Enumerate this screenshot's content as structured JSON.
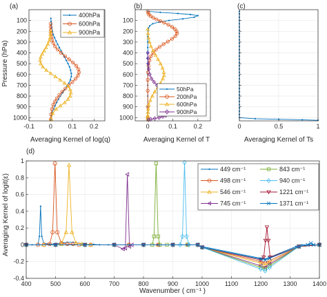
{
  "colors": [
    "#0072BD",
    "#D95319",
    "#EDB120",
    "#7E2F8E",
    "#77AC30",
    "#4DBEEE",
    "#A2142F",
    "#0072BD"
  ],
  "chart_data": [
    {
      "type": "line",
      "panel": "(a)",
      "xlabel": "Averaging Kernel of log(q)",
      "ylabel": "Pressure (hPa)",
      "xlim": [
        -0.1,
        0.25
      ],
      "ylim": [
        1030,
        0
      ],
      "y_reversed": true,
      "xticks": [
        -0.1,
        0,
        0.1,
        0.2
      ],
      "xtick_labels": [
        "-0.1",
        "0",
        "0.1",
        "0.2"
      ],
      "yticks": [
        100,
        200,
        300,
        400,
        500,
        600,
        700,
        800,
        900,
        1000
      ],
      "legend": "top-right",
      "series": [
        {
          "name": "400hPa",
          "marker": "dot",
          "color": "#0072BD",
          "x": [
            0.001,
            0.002,
            0.003,
            0.005,
            0.008,
            0.012,
            0.018,
            0.025,
            0.032,
            0.04,
            0.048,
            0.056,
            0.064,
            0.072,
            0.08,
            0.087,
            0.092,
            0.095,
            0.095,
            0.091,
            0.084,
            0.075,
            0.065,
            0.055,
            0.045,
            0.036,
            0.028,
            0.02,
            0.014,
            0.008,
            0.004,
            0.002,
            0.001
          ],
          "y": [
            80,
            110,
            140,
            170,
            200,
            230,
            260,
            290,
            320,
            350,
            380,
            410,
            440,
            470,
            500,
            530,
            560,
            590,
            620,
            650,
            680,
            710,
            740,
            770,
            800,
            830,
            860,
            890,
            920,
            950,
            980,
            1000,
            1015
          ]
        },
        {
          "name": "600hPa",
          "marker": "circle",
          "color": "#D95319",
          "x": [
            0,
            0,
            0.001,
            0.002,
            0.004,
            0.007,
            0.012,
            0.02,
            0.032,
            0.048,
            0.066,
            0.085,
            0.103,
            0.118,
            0.128,
            0.131,
            0.126,
            0.115,
            0.1,
            0.084,
            0.068,
            0.053,
            0.04,
            0.029,
            0.02,
            0.012,
            0.006,
            0.002,
            0
          ],
          "y": [
            130,
            160,
            190,
            220,
            250,
            280,
            310,
            340,
            370,
            400,
            430,
            460,
            490,
            520,
            550,
            580,
            610,
            640,
            670,
            700,
            730,
            760,
            790,
            820,
            850,
            880,
            920,
            970,
            1015
          ]
        },
        {
          "name": "900hPa",
          "marker": "triangle",
          "color": "#EDB120",
          "x": [
            0,
            -0.001,
            -0.003,
            -0.007,
            -0.013,
            -0.021,
            -0.03,
            -0.039,
            -0.046,
            -0.049,
            -0.046,
            -0.036,
            -0.02,
            0,
            0.022,
            0.044,
            0.064,
            0.08,
            0.09,
            0.093,
            0.09,
            0.08,
            0.065,
            0.045,
            0.025,
            0.01,
            0.002
          ],
          "y": [
            200,
            230,
            260,
            290,
            320,
            350,
            380,
            410,
            440,
            470,
            500,
            530,
            560,
            590,
            620,
            650,
            680,
            710,
            740,
            770,
            800,
            830,
            860,
            890,
            920,
            960,
            1015
          ]
        }
      ]
    },
    {
      "type": "line",
      "panel": "(b)",
      "xlabel": "Averaging Kernel of T",
      "ylabel": "",
      "xlim": [
        -0.05,
        0.25
      ],
      "ylim": [
        1030,
        0
      ],
      "y_reversed": true,
      "xticks": [
        0,
        0.1,
        0.2
      ],
      "xtick_labels": [
        "0",
        "0.1",
        "0.2"
      ],
      "yticks": [
        100,
        200,
        300,
        400,
        500,
        600,
        700,
        800,
        900,
        1000
      ],
      "legend": "bottom-right",
      "series": [
        {
          "name": "50hPa",
          "marker": "dot",
          "color": "#0072BD",
          "x": [
            0,
            0.05,
            0.12,
            0.17,
            0.2,
            0.185,
            0.14,
            0.085,
            0.045,
            0.02,
            0.008,
            0.003,
            0.001,
            0,
            0,
            0,
            0,
            0,
            0,
            0,
            0,
            0,
            0,
            0,
            0,
            0
          ],
          "y": [
            15,
            25,
            35,
            45,
            55,
            70,
            85,
            100,
            115,
            130,
            150,
            170,
            200,
            250,
            300,
            350,
            400,
            450,
            500,
            550,
            600,
            700,
            800,
            900,
            950,
            1000
          ]
        },
        {
          "name": "200hPa",
          "marker": "circle",
          "color": "#D95319",
          "x": [
            0,
            0.002,
            0.005,
            0.012,
            0.022,
            0.035,
            0.05,
            0.065,
            0.082,
            0.097,
            0.108,
            0.115,
            0.117,
            0.11,
            0.097,
            0.08,
            0.063,
            0.047,
            0.033,
            0.022,
            0.013,
            0.007,
            0.003,
            0.001,
            0,
            0,
            0,
            0
          ],
          "y": [
            15,
            30,
            45,
            60,
            75,
            90,
            105,
            120,
            140,
            160,
            180,
            200,
            220,
            245,
            270,
            295,
            320,
            345,
            370,
            400,
            430,
            470,
            520,
            580,
            650,
            750,
            900,
            1000
          ]
        },
        {
          "name": "600hPa",
          "marker": "triangle",
          "color": "#EDB120",
          "x": [
            0,
            0.001,
            0.003,
            0.007,
            0.013,
            0.021,
            0.031,
            0.041,
            0.051,
            0.059,
            0.064,
            0.065,
            0.06,
            0.051,
            0.04,
            0.028,
            0.018,
            0.01,
            0.004,
            0.002,
            0.001,
            0,
            0,
            0
          ],
          "y": [
            180,
            220,
            260,
            300,
            340,
            380,
            420,
            460,
            500,
            540,
            580,
            610,
            640,
            680,
            720,
            760,
            800,
            840,
            880,
            920,
            950,
            980,
            1000,
            1015
          ]
        },
        {
          "name": "900hPa",
          "marker": "diamond",
          "color": "#7E2F8E",
          "x": [
            0,
            0.001,
            0.002,
            0.004,
            0.008,
            0.015,
            0.025,
            0.037,
            0.05,
            0.062,
            0.071,
            0.077,
            0.08,
            0.082,
            0.084,
            0.085,
            0.084,
            0.08,
            0.072,
            0.06,
            0.045,
            0.028,
            0.012,
            0.003
          ],
          "y": [
            400,
            450,
            500,
            550,
            600,
            640,
            670,
            700,
            730,
            760,
            790,
            820,
            850,
            880,
            910,
            930,
            950,
            965,
            980,
            990,
            1000,
            1008,
            1015,
            1020
          ]
        }
      ]
    },
    {
      "type": "line",
      "panel": "(c)",
      "xlabel": "Averaging Kernel of Ts",
      "ylabel": "",
      "xlim": [
        0,
        1
      ],
      "ylim": [
        1030,
        0
      ],
      "y_reversed": true,
      "xticks": [
        0,
        0.5,
        1
      ],
      "xtick_labels": [
        "0",
        "0.5",
        "1"
      ],
      "yticks": [
        100,
        200,
        300,
        400,
        500,
        600,
        700,
        800,
        900,
        1000
      ],
      "series": [
        {
          "name": "",
          "marker": "dot",
          "color": "#0072BD",
          "x": [
            0,
            0,
            0,
            0,
            0,
            0,
            0,
            0,
            0,
            0,
            0,
            0,
            0,
            0,
            0,
            0,
            0,
            0,
            0,
            0,
            0,
            0,
            0,
            0,
            0,
            0,
            0,
            0,
            0,
            0,
            0,
            0,
            0,
            0,
            0.2,
            0.5,
            0.8,
            1.0
          ],
          "y": [
            15,
            40,
            70,
            100,
            130,
            160,
            190,
            220,
            250,
            280,
            310,
            340,
            370,
            400,
            430,
            460,
            490,
            520,
            550,
            580,
            610,
            640,
            670,
            700,
            730,
            760,
            790,
            820,
            850,
            880,
            910,
            940,
            970,
            1000,
            1010,
            1015,
            1020,
            1025
          ]
        }
      ]
    },
    {
      "type": "line",
      "panel": "(d)",
      "xlabel": "Wavenumber ( cm⁻¹ )",
      "ylabel": "Averaging Kernel of logit(ε)",
      "xlim": [
        400,
        1400
      ],
      "ylim": [
        -0.4,
        1
      ],
      "xticks": [
        400,
        500,
        600,
        700,
        800,
        900,
        1000,
        1100,
        1200,
        1300,
        1400
      ],
      "yticks": [
        -0.4,
        -0.2,
        0,
        0.2,
        0.4,
        0.6,
        0.8,
        1
      ],
      "ytick_labels": [
        "-0.4",
        "-0.2",
        "0",
        "0.2",
        "0.4",
        "0.6",
        "0.8",
        "1"
      ],
      "legend": "top-right",
      "series": [
        {
          "name": "449 cm⁻¹",
          "marker": "dot",
          "color": "#0072BD",
          "x": [
            400,
            420,
            440,
            445,
            449,
            453,
            460,
            480,
            500,
            520,
            540,
            560,
            620,
            630,
            650,
            680,
            700,
            750,
            800,
            850,
            900,
            950,
            980,
            1000,
            1200,
            1215,
            1230,
            1320,
            1340,
            1380,
            1400
          ],
          "y": [
            0,
            0,
            0,
            0.1,
            0.46,
            0.1,
            0.02,
            0.01,
            0.01,
            0.02,
            0.03,
            0.03,
            0,
            0.005,
            0,
            0,
            0,
            0,
            0,
            0,
            0,
            0,
            0,
            -0.02,
            -0.16,
            -0.17,
            -0.15,
            -0.02,
            0,
            0,
            0
          ]
        },
        {
          "name": "498 cm⁻¹",
          "marker": "circle",
          "color": "#D95319",
          "x": [
            400,
            440,
            460,
            480,
            490,
            498,
            506,
            520,
            540,
            560,
            580,
            620,
            700,
            750,
            800,
            850,
            900,
            950,
            985,
            1000,
            1200,
            1215,
            1230,
            1330,
            1400
          ],
          "y": [
            0,
            0,
            0,
            0.01,
            0.15,
            0.97,
            0.15,
            0.02,
            0.01,
            0.01,
            0,
            0,
            0,
            0,
            0,
            0,
            0,
            0,
            0,
            -0.03,
            -0.2,
            -0.22,
            -0.19,
            -0.02,
            0
          ]
        },
        {
          "name": "546 cm⁻¹",
          "marker": "triangle",
          "color": "#EDB120",
          "x": [
            400,
            460,
            500,
            520,
            536,
            546,
            556,
            570,
            590,
            620,
            700,
            750,
            800,
            850,
            900,
            950,
            985,
            1000,
            1200,
            1215,
            1230,
            1330,
            1400
          ],
          "y": [
            0,
            0,
            0,
            0.01,
            0.15,
            0.95,
            0.15,
            0.02,
            0.01,
            0,
            0,
            0,
            0,
            0,
            0,
            0,
            0,
            -0.03,
            -0.22,
            -0.24,
            -0.21,
            -0.02,
            0
          ]
        },
        {
          "name": "745 cm⁻¹",
          "marker": "triangle-left",
          "color": "#7E2F8E",
          "x": [
            400,
            500,
            600,
            700,
            730,
            738,
            745,
            752,
            760,
            800,
            850,
            900,
            950,
            985,
            1000,
            1200,
            1215,
            1230,
            1330,
            1400
          ],
          "y": [
            0,
            0,
            0,
            0,
            -0.05,
            -0.04,
            0.84,
            -0.02,
            0,
            0,
            0,
            0,
            0,
            0,
            -0.03,
            -0.25,
            -0.27,
            -0.23,
            -0.02,
            0
          ]
        },
        {
          "name": "843 cm⁻¹",
          "marker": "square",
          "color": "#77AC30",
          "x": [
            400,
            500,
            600,
            700,
            800,
            830,
            836,
            843,
            850,
            856,
            880,
            900,
            950,
            985,
            1000,
            1200,
            1215,
            1230,
            1330,
            1400
          ],
          "y": [
            0,
            0,
            0,
            0,
            0,
            0,
            0.1,
            0.97,
            0.1,
            0,
            0,
            0,
            0,
            0,
            -0.03,
            -0.27,
            -0.29,
            -0.25,
            -0.02,
            0
          ]
        },
        {
          "name": "940 cm⁻¹",
          "marker": "diamond",
          "color": "#4DBEEE",
          "x": [
            400,
            500,
            600,
            700,
            800,
            900,
            925,
            933,
            940,
            947,
            955,
            985,
            1000,
            1200,
            1215,
            1230,
            1330,
            1400
          ],
          "y": [
            0,
            0,
            0,
            0,
            0,
            0,
            0,
            0.1,
            0.98,
            0.1,
            0,
            0,
            -0.03,
            -0.29,
            -0.31,
            -0.27,
            -0.02,
            0
          ]
        },
        {
          "name": "1221 cm⁻¹",
          "marker": "triangle-down",
          "color": "#A2142F",
          "x": [
            400,
            500,
            600,
            700,
            800,
            900,
            985,
            1000,
            1200,
            1210,
            1216,
            1221,
            1226,
            1232,
            1330,
            1400
          ],
          "y": [
            0,
            0,
            0,
            0,
            0,
            0,
            0,
            -0.03,
            -0.18,
            -0.15,
            0.05,
            0.21,
            0.05,
            -0.15,
            -0.02,
            0
          ]
        },
        {
          "name": "1371 cm⁻¹",
          "marker": "x",
          "color": "#0072BD",
          "x": [
            400,
            500,
            600,
            700,
            800,
            900,
            985,
            1000,
            1200,
            1215,
            1230,
            1330,
            1360,
            1371,
            1380,
            1400
          ],
          "y": [
            0,
            0,
            0,
            0,
            0,
            0,
            0,
            -0.03,
            -0.17,
            -0.18,
            -0.16,
            -0.02,
            0,
            0.02,
            0,
            0
          ]
        }
      ]
    }
  ]
}
